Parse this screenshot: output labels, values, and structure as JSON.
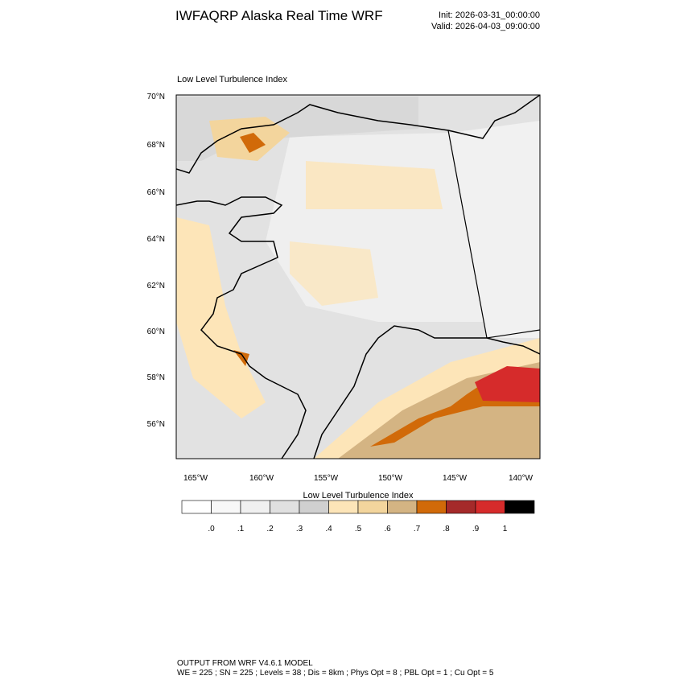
{
  "header": {
    "title": "IWFAQRP Alaska Real Time WRF",
    "init": "Init: 2026-03-31_00:00:00",
    "valid": "Valid: 2026-04-03_09:00:00"
  },
  "map": {
    "subtitle": "Low Level Turbulence Index",
    "lat_labels": [
      "70°N",
      "68°N",
      "66°N",
      "64°N",
      "62°N",
      "60°N",
      "58°N",
      "56°N"
    ],
    "lon_labels": [
      "165°W",
      "160°W",
      "155°W",
      "150°W",
      "145°W",
      "140°W"
    ]
  },
  "colorbar": {
    "title": "Low Level Turbulence Index",
    "labels": [
      ".0",
      ".1",
      ".2",
      ".3",
      ".4",
      ".5",
      ".6",
      ".7",
      ".8",
      ".9",
      "1"
    ]
  },
  "footer": {
    "line1": "OUTPUT FROM WRF V4.6.1 MODEL",
    "line2": "WE = 225 ; SN = 225 ; Levels = 38 ; Dis = 8km ; Phys Opt = 8 ; PBL Opt = 1 ; Cu Opt = 5"
  }
}
